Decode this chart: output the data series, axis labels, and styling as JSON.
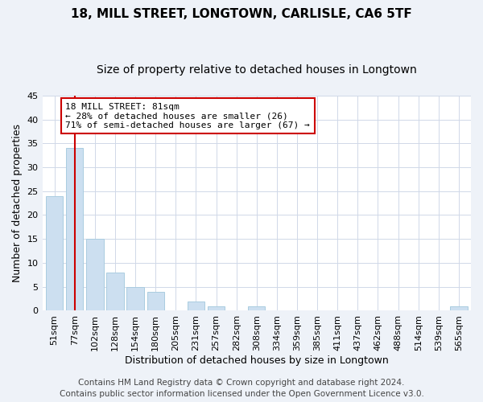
{
  "title": "18, MILL STREET, LONGTOWN, CARLISLE, CA6 5TF",
  "subtitle": "Size of property relative to detached houses in Longtown",
  "xlabel": "Distribution of detached houses by size in Longtown",
  "ylabel": "Number of detached properties",
  "bar_labels": [
    "51sqm",
    "77sqm",
    "102sqm",
    "128sqm",
    "154sqm",
    "180sqm",
    "205sqm",
    "231sqm",
    "257sqm",
    "282sqm",
    "308sqm",
    "334sqm",
    "359sqm",
    "385sqm",
    "411sqm",
    "437sqm",
    "462sqm",
    "488sqm",
    "514sqm",
    "539sqm",
    "565sqm"
  ],
  "bar_heights": [
    24,
    34,
    15,
    8,
    5,
    4,
    0,
    2,
    1,
    0,
    1,
    0,
    0,
    0,
    0,
    0,
    0,
    0,
    0,
    0,
    1
  ],
  "bar_color": "#ccdff0",
  "bar_edge_color": "#aacce0",
  "reference_line_x": 1,
  "reference_line_color": "#cc0000",
  "annotation_text": "18 MILL STREET: 81sqm\n← 28% of detached houses are smaller (26)\n71% of semi-detached houses are larger (67) →",
  "annotation_box_color": "#ffffff",
  "annotation_box_edge": "#cc0000",
  "ylim": [
    0,
    45
  ],
  "yticks": [
    0,
    5,
    10,
    15,
    20,
    25,
    30,
    35,
    40,
    45
  ],
  "footer_line1": "Contains HM Land Registry data © Crown copyright and database right 2024.",
  "footer_line2": "Contains public sector information licensed under the Open Government Licence v3.0.",
  "background_color": "#eef2f8",
  "plot_background_color": "#ffffff",
  "grid_color": "#d0d8e8",
  "title_fontsize": 11,
  "subtitle_fontsize": 10,
  "xlabel_fontsize": 9,
  "ylabel_fontsize": 9,
  "tick_fontsize": 8,
  "annotation_fontsize": 8,
  "footer_fontsize": 7.5
}
